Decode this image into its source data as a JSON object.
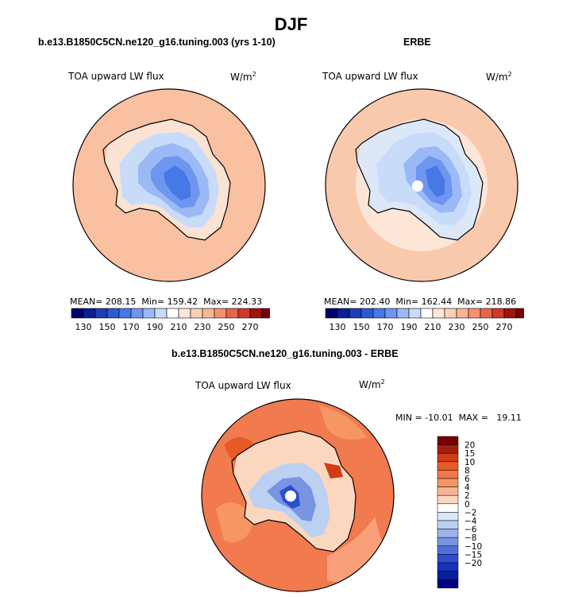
{
  "chart_data": {
    "type": "heatmap",
    "title": "DJF",
    "panels": [
      {
        "name": "model",
        "title": "b.e13.B1850C5CN.ne120_g16.tuning.003 (yrs 1-10)",
        "field_label": "TOA upward LW flux",
        "units_base": "W/m",
        "units_exp": "2",
        "stats": {
          "mean_label": "MEAN=",
          "mean": "208.15",
          "min_label": "Min=",
          "min": "159.42",
          "max_label": "Max=",
          "max": "224.33"
        },
        "colorbar": {
          "tick_labels": [
            "130",
            "150",
            "170",
            "190",
            "210",
            "230",
            "250",
            "270"
          ],
          "colors": [
            "#00006e",
            "#0a1e96",
            "#1e3cb4",
            "#2d5ad2",
            "#4678e6",
            "#6e96f0",
            "#9bb9f5",
            "#c8dcfa",
            "#ffffff",
            "#fde6d8",
            "#fcd0b8",
            "#f9b496",
            "#f59070",
            "#e8654a",
            "#d0392a",
            "#a0140c",
            "#780000"
          ]
        }
      },
      {
        "name": "obs",
        "title": "ERBE",
        "field_label": "TOA upward LW flux",
        "units_base": "W/m",
        "units_exp": "2",
        "stats": {
          "mean_label": "MEAN=",
          "mean": "202.40",
          "min_label": "Min=",
          "min": "162.44",
          "max_label": "Max=",
          "max": "218.86"
        },
        "colorbar": {
          "tick_labels": [
            "130",
            "150",
            "170",
            "190",
            "210",
            "230",
            "250",
            "270"
          ],
          "colors": [
            "#00006e",
            "#0a1e96",
            "#1e3cb4",
            "#2d5ad2",
            "#4678e6",
            "#6e96f0",
            "#9bb9f5",
            "#c8dcfa",
            "#ffffff",
            "#fde6d8",
            "#fcd0b8",
            "#f9b496",
            "#f59070",
            "#e8654a",
            "#d0392a",
            "#a0140c",
            "#780000"
          ]
        }
      },
      {
        "name": "difference",
        "title": "b.e13.B1850C5CN.ne120_g16.tuning.003 - ERBE",
        "field_label": "TOA upward LW flux",
        "units_base": "W/m",
        "units_exp": "2",
        "stats": {
          "min_label": "MIN =",
          "min": "-10.01",
          "max_label": "MAX =",
          "max": "19.11"
        },
        "colorbar": {
          "tick_labels": [
            "20",
            "15",
            "10",
            "8",
            "6",
            "4",
            "2",
            "0",
            "−2",
            "−4",
            "−6",
            "−8",
            "−10",
            "−15",
            "−20"
          ],
          "colors": [
            "#780000",
            "#a51e0a",
            "#d23c14",
            "#e65a28",
            "#f07846",
            "#f59664",
            "#f9b496",
            "#fcd7c0",
            "#ffffff",
            "#dce8f8",
            "#bcd0f2",
            "#9bb4ec",
            "#7894e2",
            "#5070d8",
            "#2c4ed0",
            "#1432bc",
            "#0a1e9b",
            "#000080"
          ]
        }
      }
    ]
  },
  "colors": {
    "ocean_model": "#f9c0a2",
    "ocean_obs": "#fce2d0",
    "ocean_diff": "#f17a4f",
    "coast": "#000000"
  }
}
